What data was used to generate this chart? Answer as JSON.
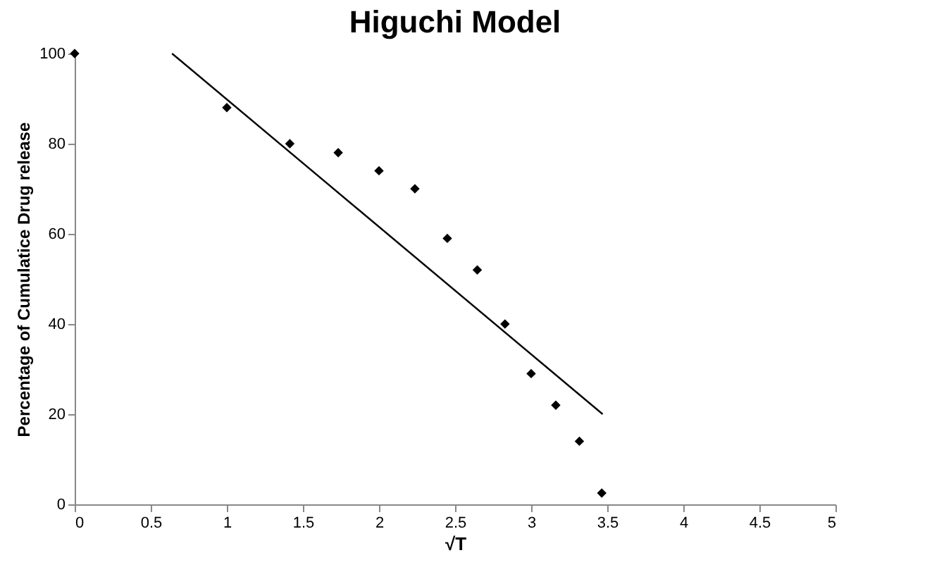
{
  "chart_data": {
    "type": "scatter",
    "title": "Higuchi Model",
    "xlabel": "√T",
    "ylabel": "Percentage of Cumulatice Drug release",
    "x": [
      0,
      1,
      1.414,
      1.732,
      2,
      2.236,
      2.449,
      2.646,
      2.828,
      3,
      3.162,
      3.317,
      3.464
    ],
    "series": [
      {
        "color": "#000000",
        "marker": "diamond",
        "values": [
          100,
          88,
          80,
          78,
          74,
          70,
          59,
          52,
          40,
          29,
          22,
          14,
          2.5
        ]
      },
      {
        "type": "line",
        "color": "#000000",
        "x": [
          0.64,
          3.47
        ],
        "values": [
          100,
          20
        ]
      }
    ],
    "xlim": [
      0,
      5
    ],
    "xticks": [
      0,
      0.5,
      1,
      1.5,
      2,
      2.5,
      3,
      3.5,
      4,
      4.5,
      5
    ],
    "ylim": [
      0,
      100
    ],
    "yticks": [
      0,
      20,
      40,
      60,
      80,
      100
    ],
    "grid": false
  }
}
